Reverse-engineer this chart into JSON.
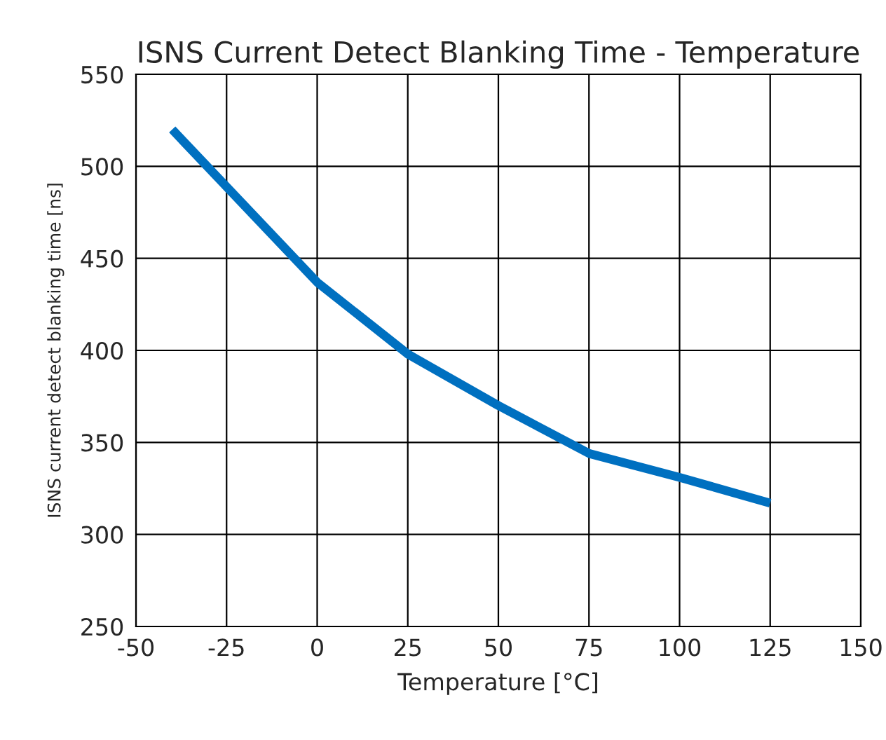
{
  "chart_data": {
    "type": "line",
    "title": "ISNS Current Detect Blanking Time - Temperature",
    "xlabel": "Temperature [°C]",
    "ylabel": "ISNS current detect blanking time [ns]",
    "x": [
      -40,
      0,
      25,
      50,
      75,
      100,
      125
    ],
    "series": [
      {
        "color": "#0070c0",
        "values": [
          520,
          437,
          398,
          370,
          344,
          331,
          317
        ]
      }
    ],
    "xlim": [
      -50,
      150
    ],
    "xticks": [
      -50,
      -25,
      0,
      25,
      50,
      75,
      100,
      125,
      150
    ],
    "ylim": [
      250,
      550
    ],
    "yticks": [
      250,
      300,
      350,
      400,
      450,
      500,
      550
    ],
    "grid": true,
    "marker": "none",
    "line_style": "solid",
    "legend": false
  }
}
